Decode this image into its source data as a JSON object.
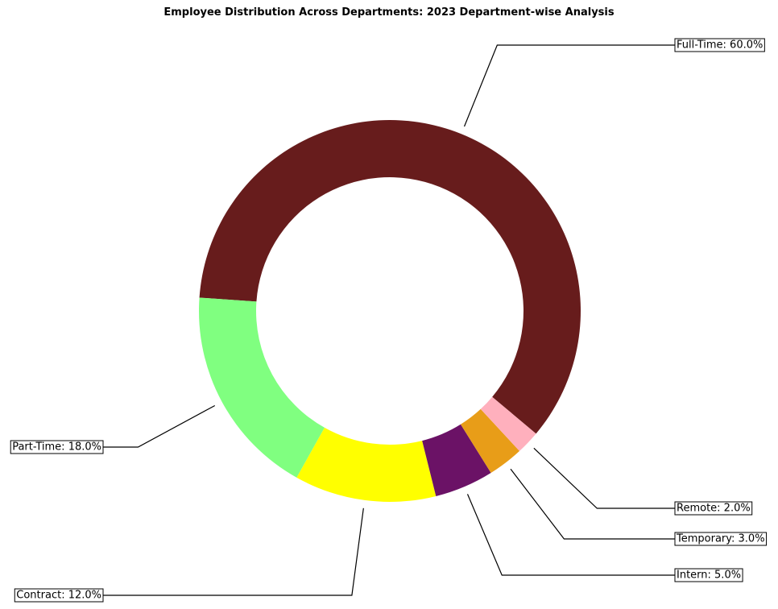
{
  "chart_data": {
    "type": "pie",
    "variant": "donut",
    "title": "Employee Distribution Across Departments: 2023 Department-wise Analysis",
    "categories": [
      "Full-Time",
      "Part-Time",
      "Contract",
      "Intern",
      "Temporary",
      "Remote"
    ],
    "values": [
      60.0,
      18.0,
      12.0,
      5.0,
      3.0,
      2.0
    ],
    "labels": [
      "Full-Time: 60.0%",
      "Part-Time: 18.0%",
      "Contract: 12.0%",
      "Intern: 5.0%",
      "Temporary: 3.0%",
      "Remote: 2.0%"
    ],
    "colors": [
      "#671c1c",
      "#80ff80",
      "#ffff00",
      "#6b1266",
      "#e89d18",
      "#ffb0bd"
    ],
    "start_angle_deg": -40,
    "direction": "counterclockwise",
    "legend": "none"
  }
}
